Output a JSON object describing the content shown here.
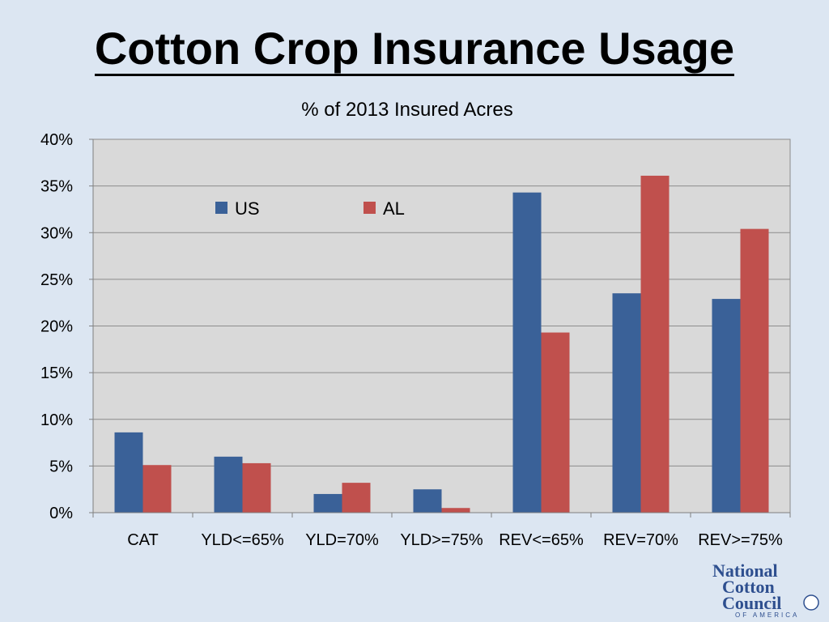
{
  "slide": {
    "title": "Cotton Crop Insurance Usage"
  },
  "logo": {
    "line1": "National",
    "line2": "Cotton",
    "line3": "Council",
    "tagline": "OF AMERICA"
  },
  "chart_data": {
    "type": "bar",
    "title": "% of 2013 Insured Acres",
    "categories": [
      "CAT",
      "YLD<=65%",
      "YLD=70%",
      "YLD>=75%",
      "REV<=65%",
      "REV=70%",
      "REV>=75%"
    ],
    "series": [
      {
        "name": "US",
        "color": "#3a6198",
        "values": [
          8.6,
          6.0,
          2.0,
          2.5,
          34.3,
          23.5,
          22.9
        ]
      },
      {
        "name": "AL",
        "color": "#c0504d",
        "values": [
          5.1,
          5.3,
          3.2,
          0.5,
          19.3,
          36.1,
          30.4
        ]
      }
    ],
    "ylim": [
      0,
      40
    ],
    "yticks": [
      "0%",
      "5%",
      "10%",
      "15%",
      "20%",
      "25%",
      "30%",
      "35%",
      "40%"
    ],
    "grid": true,
    "legend_position": "top-left-inside",
    "plot_background": "#d9d9d9",
    "grid_color": "#8c8c8c"
  }
}
